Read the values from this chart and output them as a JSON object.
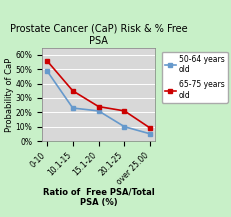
{
  "title": "Prostate Cancer (CaP) Risk & % Free\nPSA",
  "xlabel": "Ratio of  Free PSA/Total\nPSA (%)",
  "ylabel": "Probability of CaP",
  "x_labels": [
    "0-10",
    "10.1-15",
    "15.1-20",
    "20.1-25",
    "over 25.00"
  ],
  "series": [
    {
      "label": "50-64 years\nold",
      "color": "#6699cc",
      "values": [
        49,
        23,
        21,
        10,
        5
      ],
      "marker": "s",
      "linestyle": "-"
    },
    {
      "label": "65-75 years\nold",
      "color": "#cc0000",
      "values": [
        56,
        35,
        24,
        21,
        9
      ],
      "marker": "s",
      "linestyle": "-"
    }
  ],
  "ylim": [
    0,
    65
  ],
  "yticks": [
    0,
    10,
    20,
    30,
    40,
    50,
    60
  ],
  "ytick_labels": [
    "0%",
    "10%",
    "20%",
    "30%",
    "40%",
    "50%",
    "60%"
  ],
  "background_color": "#c8f0c8",
  "plot_bg_color": "#d8d8d8",
  "title_fontsize": 7,
  "axis_label_fontsize": 6,
  "tick_fontsize": 5.5,
  "legend_fontsize": 5.5
}
